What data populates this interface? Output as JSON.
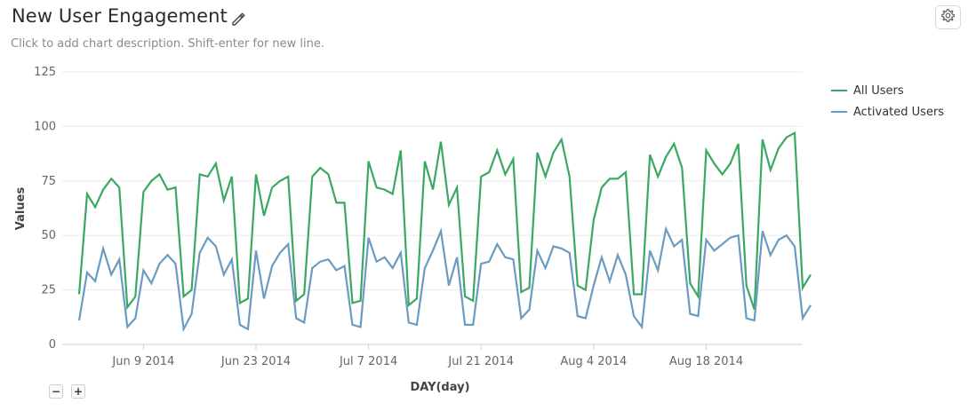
{
  "header": {
    "title": "New User Engagement",
    "description": "Click to add chart description. Shift-enter for new line.",
    "edit_icon": "pencil-icon",
    "settings_icon": "gear-icon"
  },
  "zoom": {
    "out_label": "−",
    "in_label": "+"
  },
  "colors": {
    "all_users": "#3aa862",
    "activated_users": "#6a9bc0",
    "grid": "#ebebeb"
  },
  "chart_data": {
    "type": "line",
    "xlabel": "DAY(day)",
    "ylabel": "Values",
    "ylim": [
      0,
      125
    ],
    "yticks": [
      "0",
      "25",
      "50",
      "75",
      "100",
      "125"
    ],
    "x_start": "2014-06-01",
    "x_end": "2014-08-30",
    "xticks": [
      {
        "date": "2014-06-09",
        "label": "Jun 9 2014"
      },
      {
        "date": "2014-06-23",
        "label": "Jun 23 2014"
      },
      {
        "date": "2014-07-07",
        "label": "Jul 7 2014"
      },
      {
        "date": "2014-07-21",
        "label": "Jul 21 2014"
      },
      {
        "date": "2014-08-04",
        "label": "Aug 4 2014"
      },
      {
        "date": "2014-08-18",
        "label": "Aug 18 2014"
      }
    ],
    "legend_position": "right",
    "grid": true,
    "series": [
      {
        "name": "All Users",
        "color": "#3aa862",
        "values": [
          23,
          69,
          63,
          71,
          76,
          72,
          17,
          22,
          70,
          75,
          78,
          71,
          72,
          22,
          25,
          78,
          77,
          83,
          66,
          77,
          19,
          21,
          78,
          59,
          72,
          75,
          77,
          20,
          23,
          77,
          81,
          78,
          65,
          65,
          19,
          20,
          84,
          72,
          71,
          69,
          89,
          18,
          21,
          84,
          71,
          93,
          64,
          72,
          22,
          20,
          77,
          79,
          89,
          78,
          85,
          24,
          26,
          88,
          77,
          88,
          94,
          77,
          27,
          25,
          57,
          72,
          76,
          76,
          79,
          23,
          23,
          87,
          77,
          86,
          92,
          81,
          28,
          22,
          89,
          83,
          78,
          83,
          92,
          27,
          16,
          94,
          80,
          90,
          95,
          97,
          26,
          32
        ]
      },
      {
        "name": "Activated Users",
        "color": "#6a9bc0",
        "values": [
          11,
          33,
          29,
          44,
          32,
          39,
          8,
          12,
          34,
          28,
          37,
          41,
          37,
          7,
          14,
          42,
          49,
          45,
          32,
          39,
          9,
          7,
          43,
          21,
          36,
          42,
          46,
          12,
          10,
          35,
          38,
          39,
          34,
          36,
          9,
          8,
          49,
          38,
          40,
          35,
          42,
          10,
          9,
          35,
          43,
          52,
          27,
          40,
          9,
          9,
          37,
          38,
          46,
          40,
          39,
          12,
          16,
          43,
          35,
          45,
          44,
          42,
          13,
          12,
          27,
          40,
          29,
          41,
          32,
          13,
          8,
          43,
          34,
          53,
          45,
          48,
          14,
          13,
          48,
          43,
          46,
          49,
          50,
          12,
          11,
          52,
          41,
          48,
          50,
          45,
          12,
          18
        ]
      }
    ]
  }
}
